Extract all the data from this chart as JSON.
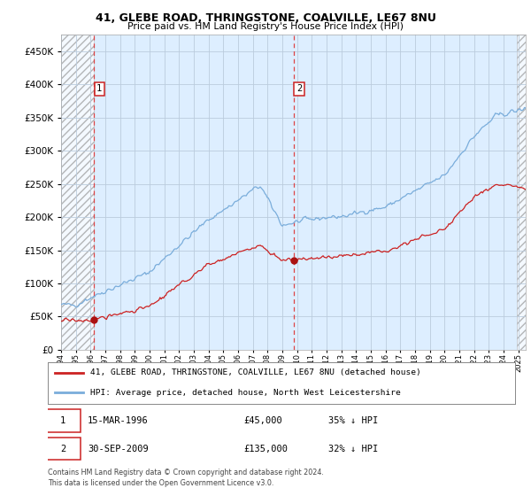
{
  "title1": "41, GLEBE ROAD, THRINGSTONE, COALVILLE, LE67 8NU",
  "title2": "Price paid vs. HM Land Registry's House Price Index (HPI)",
  "ylim": [
    0,
    475000
  ],
  "xlim_start": 1994.0,
  "xlim_end": 2025.5,
  "sale1_date": 1996.21,
  "sale1_price": 45000,
  "sale1_label": "1",
  "sale2_date": 2009.75,
  "sale2_price": 135000,
  "sale2_label": "2",
  "legend_line1": "41, GLEBE ROAD, THRINGSTONE, COALVILLE, LE67 8NU (detached house)",
  "legend_line2": "HPI: Average price, detached house, North West Leicestershire",
  "footer": "Contains HM Land Registry data © Crown copyright and database right 2024.\nThis data is licensed under the Open Government Licence v3.0.",
  "hpi_color": "#7aaddb",
  "price_color": "#cc2222",
  "sale_marker_color": "#aa1111",
  "dashed_line_color": "#dd4444",
  "bg_plot_color": "#ddeeff",
  "grid_color": "#bbccdd",
  "hatch_bg": "#e8e8e8"
}
